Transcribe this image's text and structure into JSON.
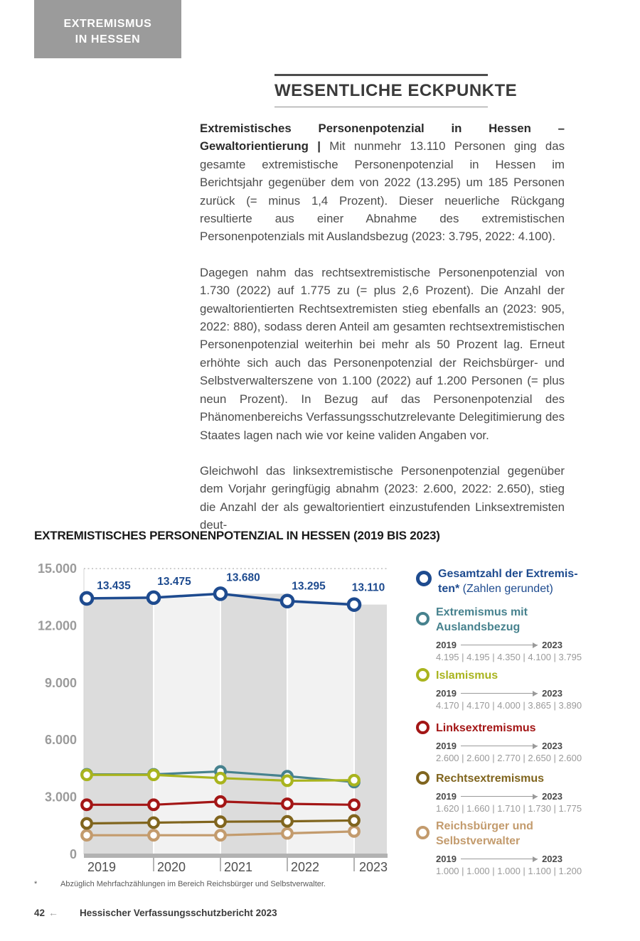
{
  "page": {
    "header_tab": {
      "line1": "EXTREMISMUS",
      "line2": "IN HESSEN"
    },
    "section_title": "WESENTLICHE ECKPUNKTE",
    "paragraphs": [
      {
        "lead": "Extremistisches Personenpotenzial in Hessen – Gewaltorientierung |",
        "text": "Mit nunmehr 13.110 Personen ging das gesamte extremistische Personenpotenzial in Hessen im Berichtsjahr gegenüber dem von 2022 (13.295) um 185 Personen zurück (= minus 1,4 Prozent). Dieser neuerliche Rückgang resultierte aus einer Abnahme des extremistischen Personenpotenzials mit Auslandsbezug (2023: 3.795, 2022: 4.100)."
      },
      {
        "lead": "",
        "text": "Dagegen nahm das rechtsextremistische Personenpotenzial von 1.730 (2022) auf 1.775 zu (= plus 2,6 Prozent). Die Anzahl der gewaltorientierten Rechtsextremisten stieg ebenfalls an (2023: 905, 2022: 880), sodass deren Anteil am gesamten rechtsextremistischen Personenpotenzial weiterhin bei mehr als 50 Prozent lag. Erneut erhöhte sich auch das Personenpotenzial der Reichsbürger- und Selbstverwalterszene von 1.100 (2022) auf 1.200 Personen (= plus neun Prozent). In Bezug auf das Personenpotenzial des Phänomenbereichs Verfassungsschutzrelevante Delegitimierung des Staates lagen nach wie vor keine validen Angaben vor."
      },
      {
        "lead": "",
        "text": "Gleichwohl das linksextremistische Personenpotenzial gegenüber dem Vorjahr geringfügig abnahm (2023: 2.600, 2022: 2.650), stieg die Anzahl der als gewaltorientiert einzustufenden Linksextremisten deut-"
      }
    ],
    "footnote": {
      "marker": "*",
      "text": "Abzüglich Mehrfachzählungen im Bereich Reichsbürger und Selbstverwalter."
    },
    "footer": {
      "page_number": "42",
      "arrow": "←",
      "title": "Hessischer Verfassungsschutzbericht 2023"
    }
  },
  "chart_data": {
    "type": "line",
    "title": "EXTREMISTISCHES PERSONENPOTENZIAL IN HESSEN (2019 BIS 2023)",
    "x": [
      "2019",
      "2020",
      "2021",
      "2022",
      "2023"
    ],
    "xlabel": "",
    "ylabel": "",
    "ylim": [
      0,
      15000
    ],
    "yticks": [
      "15.000",
      "12.000",
      "9.000",
      "6.000",
      "3.000",
      "0"
    ],
    "ytick_values": [
      15000,
      12000,
      9000,
      6000,
      3000,
      0
    ],
    "grid": "top dotted line only, alternating vertical background bands stepped to total values",
    "legend_position": "right",
    "band_colors": [
      "#dcdcdc",
      "#f2f2f2"
    ],
    "axis_label_color": "#9b9b9b",
    "year_label_color": "#4f4f4f",
    "series": [
      {
        "name": "Gesamtzahl der Extremisten* (Zahlen gerundet)",
        "color": "#1e4b8f",
        "values": [
          13435,
          13475,
          13680,
          13295,
          13110
        ],
        "point_labels": [
          "13.435",
          "13.475",
          "13.680",
          "13.295",
          "13.110"
        ]
      },
      {
        "name": "Extremismus mit Auslandsbezug",
        "color": "#47828e",
        "values": [
          4195,
          4195,
          4350,
          4100,
          3795
        ],
        "values_text": "4.195 | 4.195 | 4.350 | 4.100 | 3.795"
      },
      {
        "name": "Islamismus",
        "color": "#a9b41e",
        "values": [
          4170,
          4170,
          4000,
          3865,
          3890
        ],
        "values_text": "4.170 | 4.170 | 4.000 | 3.865 | 3.890"
      },
      {
        "name": "Linksextremismus",
        "color": "#a31616",
        "values": [
          2600,
          2600,
          2770,
          2650,
          2600
        ],
        "values_text": "2.600 | 2.600 | 2.770 | 2.650 | 2.600"
      },
      {
        "name": "Rechtsextremismus",
        "color": "#80651e",
        "values": [
          1620,
          1660,
          1710,
          1730,
          1775
        ],
        "values_text": "1.620 | 1.660 | 1.710 | 1.730 | 1.775"
      },
      {
        "name": "Reichsbürger und Selbstverwalter",
        "color": "#c39b6d",
        "values": [
          1000,
          1000,
          1000,
          1100,
          1200
        ],
        "values_text": "1.000 | 1.000 | 1.000 | 1.100 | 1.200"
      }
    ],
    "range_from": "2019",
    "range_to": "2023",
    "legend": [
      {
        "lines": [
          "Gesamtzahl der Extremis-",
          "ten*"
        ],
        "suffix": " (Zahlen gerundet)",
        "show_range": false
      },
      {
        "lines": [
          "Extremismus mit",
          "Auslandsbezug"
        ],
        "suffix": "",
        "show_range": true
      },
      {
        "lines": [
          "Islamismus"
        ],
        "suffix": "",
        "show_range": true
      },
      {
        "lines": [
          "Linksextremismus"
        ],
        "suffix": "",
        "show_range": true
      },
      {
        "lines": [
          "Rechtsextremismus"
        ],
        "suffix": "",
        "show_range": true
      },
      {
        "lines": [
          "Reichsbürger und",
          "Selbstverwalter"
        ],
        "suffix": "",
        "show_range": true
      }
    ]
  }
}
